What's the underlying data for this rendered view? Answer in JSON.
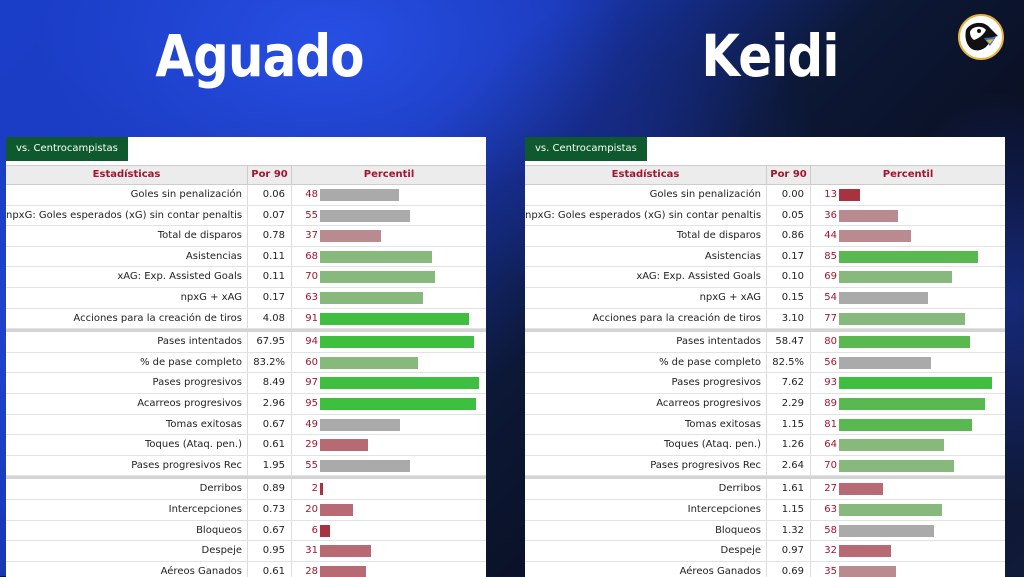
{
  "players": [
    {
      "name": "Aguado",
      "tab": "vs. Centrocampistas",
      "headers": {
        "stat": "Estadísticas",
        "per90": "Por 90",
        "percentile": "Percentil"
      },
      "groups": [
        [
          {
            "label": "Goles sin penalización",
            "per90": "0.06",
            "pct": 48
          },
          {
            "label": "npxG: Goles esperados (xG) sin contar penaltis",
            "per90": "0.07",
            "pct": 55
          },
          {
            "label": "Total de disparos",
            "per90": "0.78",
            "pct": 37
          },
          {
            "label": "Asistencias",
            "per90": "0.11",
            "pct": 68
          },
          {
            "label": "xAG: Exp. Assisted Goals",
            "per90": "0.11",
            "pct": 70
          },
          {
            "label": "npxG + xAG",
            "per90": "0.17",
            "pct": 63
          },
          {
            "label": "Acciones para la creación de tiros",
            "per90": "4.08",
            "pct": 91
          }
        ],
        [
          {
            "label": "Pases intentados",
            "per90": "67.95",
            "pct": 94
          },
          {
            "label": "% de pase completo",
            "per90": "83.2%",
            "pct": 60
          },
          {
            "label": "Pases progresivos",
            "per90": "8.49",
            "pct": 97
          },
          {
            "label": "Acarreos progresivos",
            "per90": "2.96",
            "pct": 95
          },
          {
            "label": "Tomas exitosas",
            "per90": "0.67",
            "pct": 49
          },
          {
            "label": "Toques (Ataq. pen.)",
            "per90": "0.61",
            "pct": 29
          },
          {
            "label": "Pases progresivos Rec",
            "per90": "1.95",
            "pct": 55
          }
        ],
        [
          {
            "label": "Derribos",
            "per90": "0.89",
            "pct": 2
          },
          {
            "label": "Intercepciones",
            "per90": "0.73",
            "pct": 20
          },
          {
            "label": "Bloqueos",
            "per90": "0.67",
            "pct": 6
          },
          {
            "label": "Despeje",
            "per90": "0.95",
            "pct": 31
          },
          {
            "label": "Aéreos Ganados",
            "per90": "0.61",
            "pct": 28
          }
        ]
      ]
    },
    {
      "name": "Keidi",
      "tab": "vs. Centrocampistas",
      "headers": {
        "stat": "Estadísticas",
        "per90": "Por 90",
        "percentile": "Percentil"
      },
      "groups": [
        [
          {
            "label": "Goles sin penalización",
            "per90": "0.00",
            "pct": 13
          },
          {
            "label": "npxG: Goles esperados (xG) sin contar penaltis",
            "per90": "0.05",
            "pct": 36
          },
          {
            "label": "Total de disparos",
            "per90": "0.86",
            "pct": 44
          },
          {
            "label": "Asistencias",
            "per90": "0.17",
            "pct": 85
          },
          {
            "label": "xAG: Exp. Assisted Goals",
            "per90": "0.10",
            "pct": 69
          },
          {
            "label": "npxG + xAG",
            "per90": "0.15",
            "pct": 54
          },
          {
            "label": "Acciones para la creación de tiros",
            "per90": "3.10",
            "pct": 77
          }
        ],
        [
          {
            "label": "Pases intentados",
            "per90": "58.47",
            "pct": 80
          },
          {
            "label": "% de pase completo",
            "per90": "82.5%",
            "pct": 56
          },
          {
            "label": "Pases progresivos",
            "per90": "7.62",
            "pct": 93
          },
          {
            "label": "Acarreos progresivos",
            "per90": "2.29",
            "pct": 89
          },
          {
            "label": "Tomas exitosas",
            "per90": "1.15",
            "pct": 81
          },
          {
            "label": "Toques (Ataq. pen.)",
            "per90": "1.26",
            "pct": 64
          },
          {
            "label": "Pases progresivos Rec",
            "per90": "2.64",
            "pct": 70
          }
        ],
        [
          {
            "label": "Derribos",
            "per90": "1.61",
            "pct": 27
          },
          {
            "label": "Intercepciones",
            "per90": "1.15",
            "pct": 63
          },
          {
            "label": "Bloqueos",
            "per90": "1.32",
            "pct": 58
          },
          {
            "label": "Despeje",
            "per90": "0.97",
            "pct": 32
          },
          {
            "label": "Aéreos Ganados",
            "per90": "0.69",
            "pct": 35
          }
        ]
      ]
    }
  ],
  "logo": {
    "icon": "bird-mascot-icon"
  }
}
